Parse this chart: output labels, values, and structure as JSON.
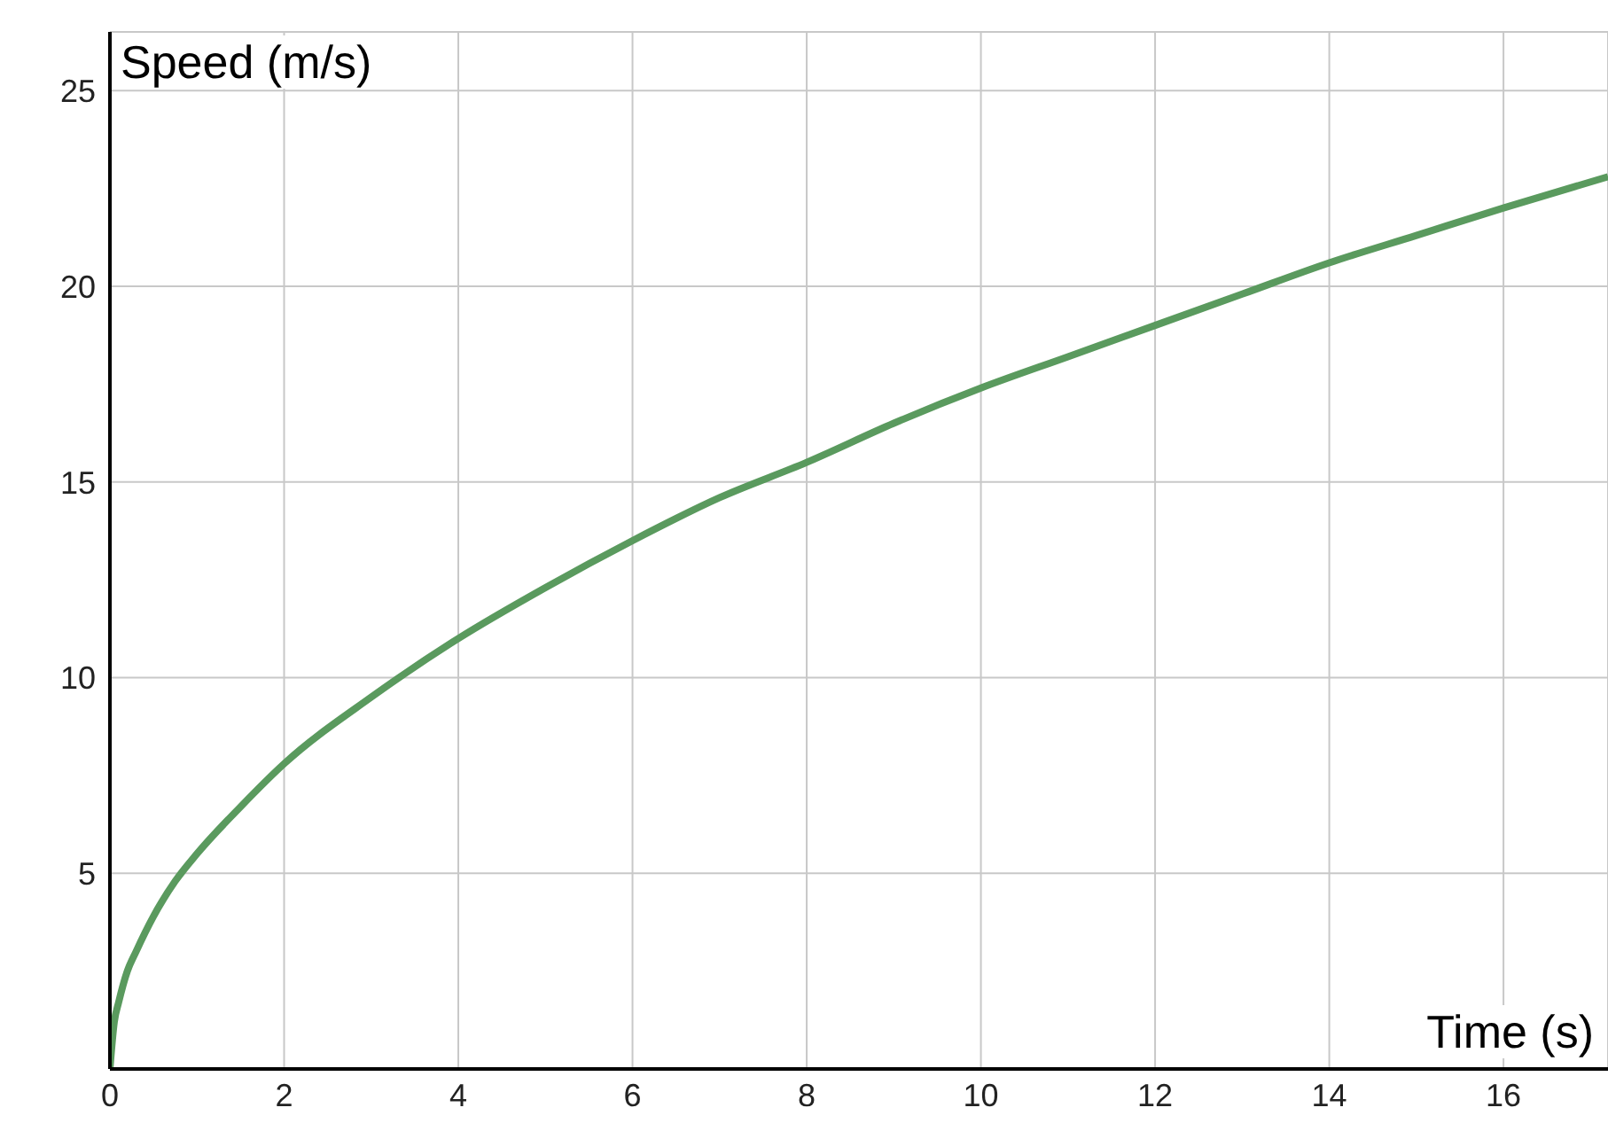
{
  "chart_data": {
    "type": "line",
    "xlabel": "Time (s)",
    "ylabel": "Speed (m/s)",
    "x": [
      0,
      0.05,
      0.1,
      0.2,
      0.3,
      0.5,
      0.75,
      1,
      1.5,
      2,
      3,
      4,
      5,
      6,
      7,
      8,
      9,
      10,
      11,
      12,
      13,
      14,
      15,
      16,
      17.2
    ],
    "series": [
      {
        "color": "#5a9a5e",
        "values": [
          0,
          1.2,
          1.7,
          2.5,
          3,
          3.9,
          4.8,
          5.5,
          6.7,
          7.8,
          9.5,
          11,
          12.3,
          13.5,
          14.6,
          15.5,
          16.5,
          17.4,
          18.2,
          19,
          19.8,
          20.6,
          21.3,
          22,
          22.8
        ]
      }
    ],
    "xlim": [
      0,
      17.2
    ],
    "ylim": [
      0,
      26.5
    ],
    "xticks": [
      0,
      2,
      4,
      6,
      8,
      10,
      12,
      14,
      16
    ],
    "yticks": [
      5,
      10,
      15,
      20,
      25
    ],
    "grid": true,
    "marker": "none",
    "line_style": "solid"
  }
}
